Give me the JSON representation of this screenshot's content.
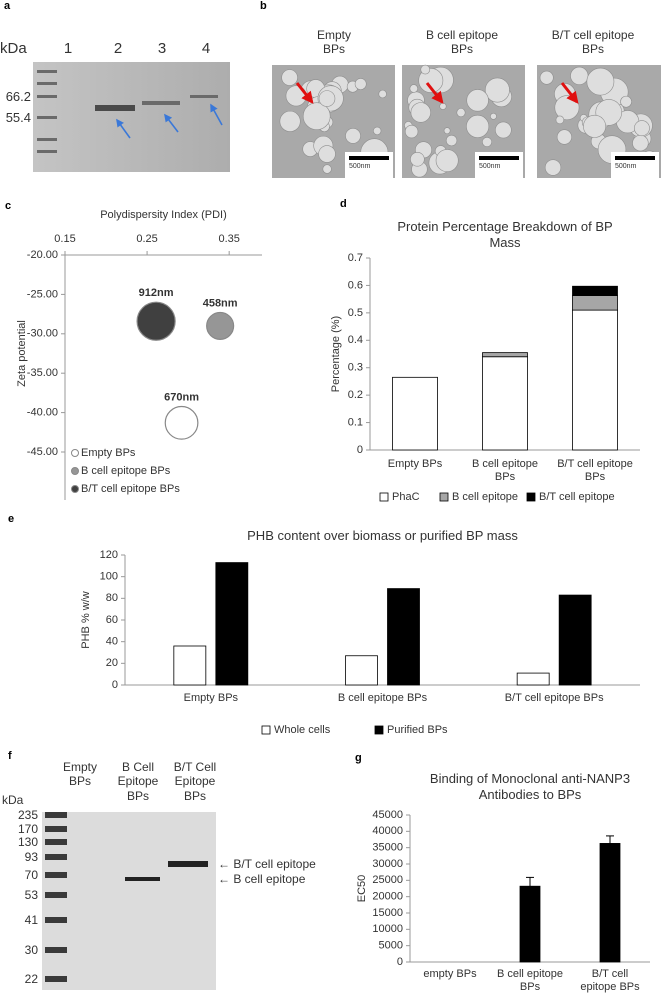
{
  "panel_a": {
    "label": "a",
    "unit": "kDa",
    "lanes": [
      "1",
      "2",
      "3",
      "4"
    ],
    "markers": [
      "66.2",
      "55.4"
    ]
  },
  "panel_b": {
    "label": "b",
    "images": [
      {
        "title": "Empty BPs",
        "scale": "500nm"
      },
      {
        "title": "B cell epitope BPs",
        "scale": "500nm"
      },
      {
        "title": "B/T cell epitope BPs",
        "scale": "500nm"
      }
    ]
  },
  "chart_data": [
    {
      "panel": "c",
      "type": "bubble",
      "x_label": "Polydispersity Index (PDI)",
      "y_label": "Zeta potential",
      "xlim": [
        0.15,
        0.39
      ],
      "xticks": [
        0.15,
        0.25,
        0.35
      ],
      "ylim": [
        -45,
        -20
      ],
      "yticks": [
        {
          "value": -20,
          "label": "-20.00"
        },
        {
          "value": -25,
          "label": "-25.00"
        },
        {
          "value": -30,
          "label": "-30.00"
        },
        {
          "value": -35,
          "label": "-35.00"
        },
        {
          "value": -40,
          "label": "-40.00"
        },
        {
          "value": -45,
          "label": "-45.00"
        }
      ],
      "legend": "lower left",
      "series": [
        {
          "name": "Empty BPs",
          "color": "#ffffff",
          "x": [
            0.292
          ],
          "values": [
            -41.3
          ],
          "sizes": [
            670
          ],
          "size_labels": [
            "670nm"
          ]
        },
        {
          "name": "B cell epitope BPs",
          "color": "#969696",
          "x": [
            0.339
          ],
          "values": [
            -29.0
          ],
          "sizes": [
            458
          ],
          "size_labels": [
            "458nm"
          ]
        },
        {
          "name": "B/T cell epitope BPs",
          "color": "#404040",
          "x": [
            0.261
          ],
          "values": [
            -28.4
          ],
          "sizes": [
            912
          ],
          "size_labels": [
            "912nm"
          ]
        }
      ]
    },
    {
      "panel": "d",
      "type": "bar",
      "stacked": true,
      "title": "Protein Percentage Breakdown of BP Mass",
      "y_label": "Percentage (%)",
      "categories": [
        "Empty BPs",
        "B cell epitope BPs",
        "B/T cell epitope BPs"
      ],
      "ylim": [
        0,
        0.7
      ],
      "yticks": [
        0,
        0.1,
        0.2,
        0.3,
        0.4,
        0.5,
        0.6,
        0.7
      ],
      "legend": "bottom",
      "series": [
        {
          "name": "PhaC",
          "color": "#ffffff",
          "values": [
            0.265,
            0.34,
            0.51
          ]
        },
        {
          "name": "B cell epitope",
          "color": "#a6a6a6",
          "values": [
            null,
            0.015,
            0.053
          ]
        },
        {
          "name": "B/T cell epitope",
          "color": "#000000",
          "values": [
            null,
            null,
            0.034
          ]
        }
      ]
    },
    {
      "panel": "e",
      "type": "bar",
      "title": "PHB content over biomass or purified BP mass",
      "y_label": "PHB % w/w",
      "categories": [
        "Empty BPs",
        "B cell epitope BPs",
        "B/T cell epitope BPs"
      ],
      "ylim": [
        0,
        120
      ],
      "yticks": [
        0,
        20,
        40,
        60,
        80,
        100,
        120
      ],
      "legend": "bottom",
      "series": [
        {
          "name": "Whole cells",
          "color": "#ffffff",
          "values": [
            36,
            27,
            11
          ]
        },
        {
          "name": "Purified BPs",
          "color": "#000000",
          "values": [
            113,
            89,
            83
          ]
        }
      ]
    },
    {
      "panel": "g",
      "type": "bar",
      "title": "Binding of Monoclonal anti-NANP3 Antibodies to BPs",
      "y_label": "EC50",
      "categories": [
        "empty BPs",
        "B cell epitope BPs",
        "B/T cell epitope BPs"
      ],
      "ylim": [
        0,
        45000
      ],
      "yticks": [
        0,
        5000,
        10000,
        15000,
        20000,
        25000,
        30000,
        35000,
        40000,
        45000
      ],
      "series": [
        {
          "color": "#000000",
          "values": [
            0,
            23200,
            36300
          ],
          "errors": [
            null,
            2700,
            2300
          ]
        }
      ]
    }
  ],
  "panel_f": {
    "label": "f",
    "unit": "kDa",
    "ladder": [
      "235",
      "170",
      "130",
      "93",
      "70",
      "53",
      "41",
      "30",
      "22"
    ],
    "lanes": [
      "Empty BPs",
      "B Cell Epitope BPs",
      "B/T Cell Epitope BPs"
    ],
    "bands": [
      "← B/T cell epitope",
      "← B cell epitope"
    ]
  }
}
